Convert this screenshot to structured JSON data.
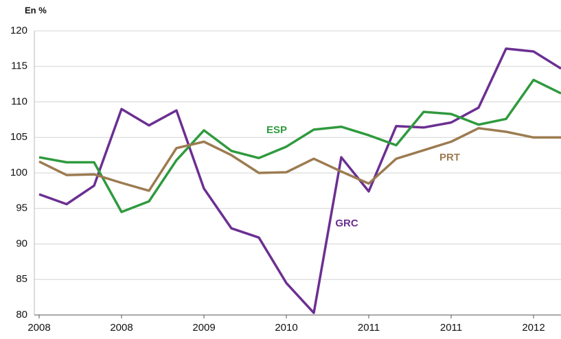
{
  "chart_data": {
    "type": "line",
    "y_label": "En %",
    "categories": [
      "2008",
      null,
      null,
      "2008",
      null,
      null,
      "2009",
      null,
      null,
      "2010",
      null,
      null,
      "2011",
      null,
      null,
      "2011",
      null,
      null,
      "2012",
      null
    ],
    "series": [
      {
        "name": "GRC",
        "color": "#6b2f92",
        "values": [
          97,
          95.6,
          98.2,
          109,
          106.7,
          108.8,
          97.8,
          92.2,
          90.9,
          84.5,
          80.3,
          102.2,
          97.4,
          106.6,
          106.4,
          107.1,
          109.2,
          117.5,
          117.1,
          114.7
        ]
      },
      {
        "name": "ESP",
        "color": "#2f9a3e",
        "values": [
          102.2,
          101.5,
          101.5,
          94.5,
          96.0,
          101.8,
          106.0,
          103.1,
          102.1,
          103.7,
          106.1,
          106.5,
          105.3,
          103.9,
          108.6,
          108.3,
          106.8,
          107.6,
          113.1,
          111.2
        ]
      },
      {
        "name": "PRT",
        "color": "#9c7b50",
        "values": [
          101.6,
          99.7,
          99.8,
          98.6,
          97.5,
          103.5,
          104.4,
          102.5,
          100.0,
          100.1,
          102.0,
          100.2,
          98.5,
          102.0,
          103.2,
          104.4,
          106.3,
          105.8,
          105.0,
          105.0
        ]
      }
    ],
    "ylim": [
      80,
      120
    ],
    "yticks": [
      80,
      85,
      90,
      95,
      100,
      105,
      110,
      115,
      120
    ],
    "grid": true
  }
}
